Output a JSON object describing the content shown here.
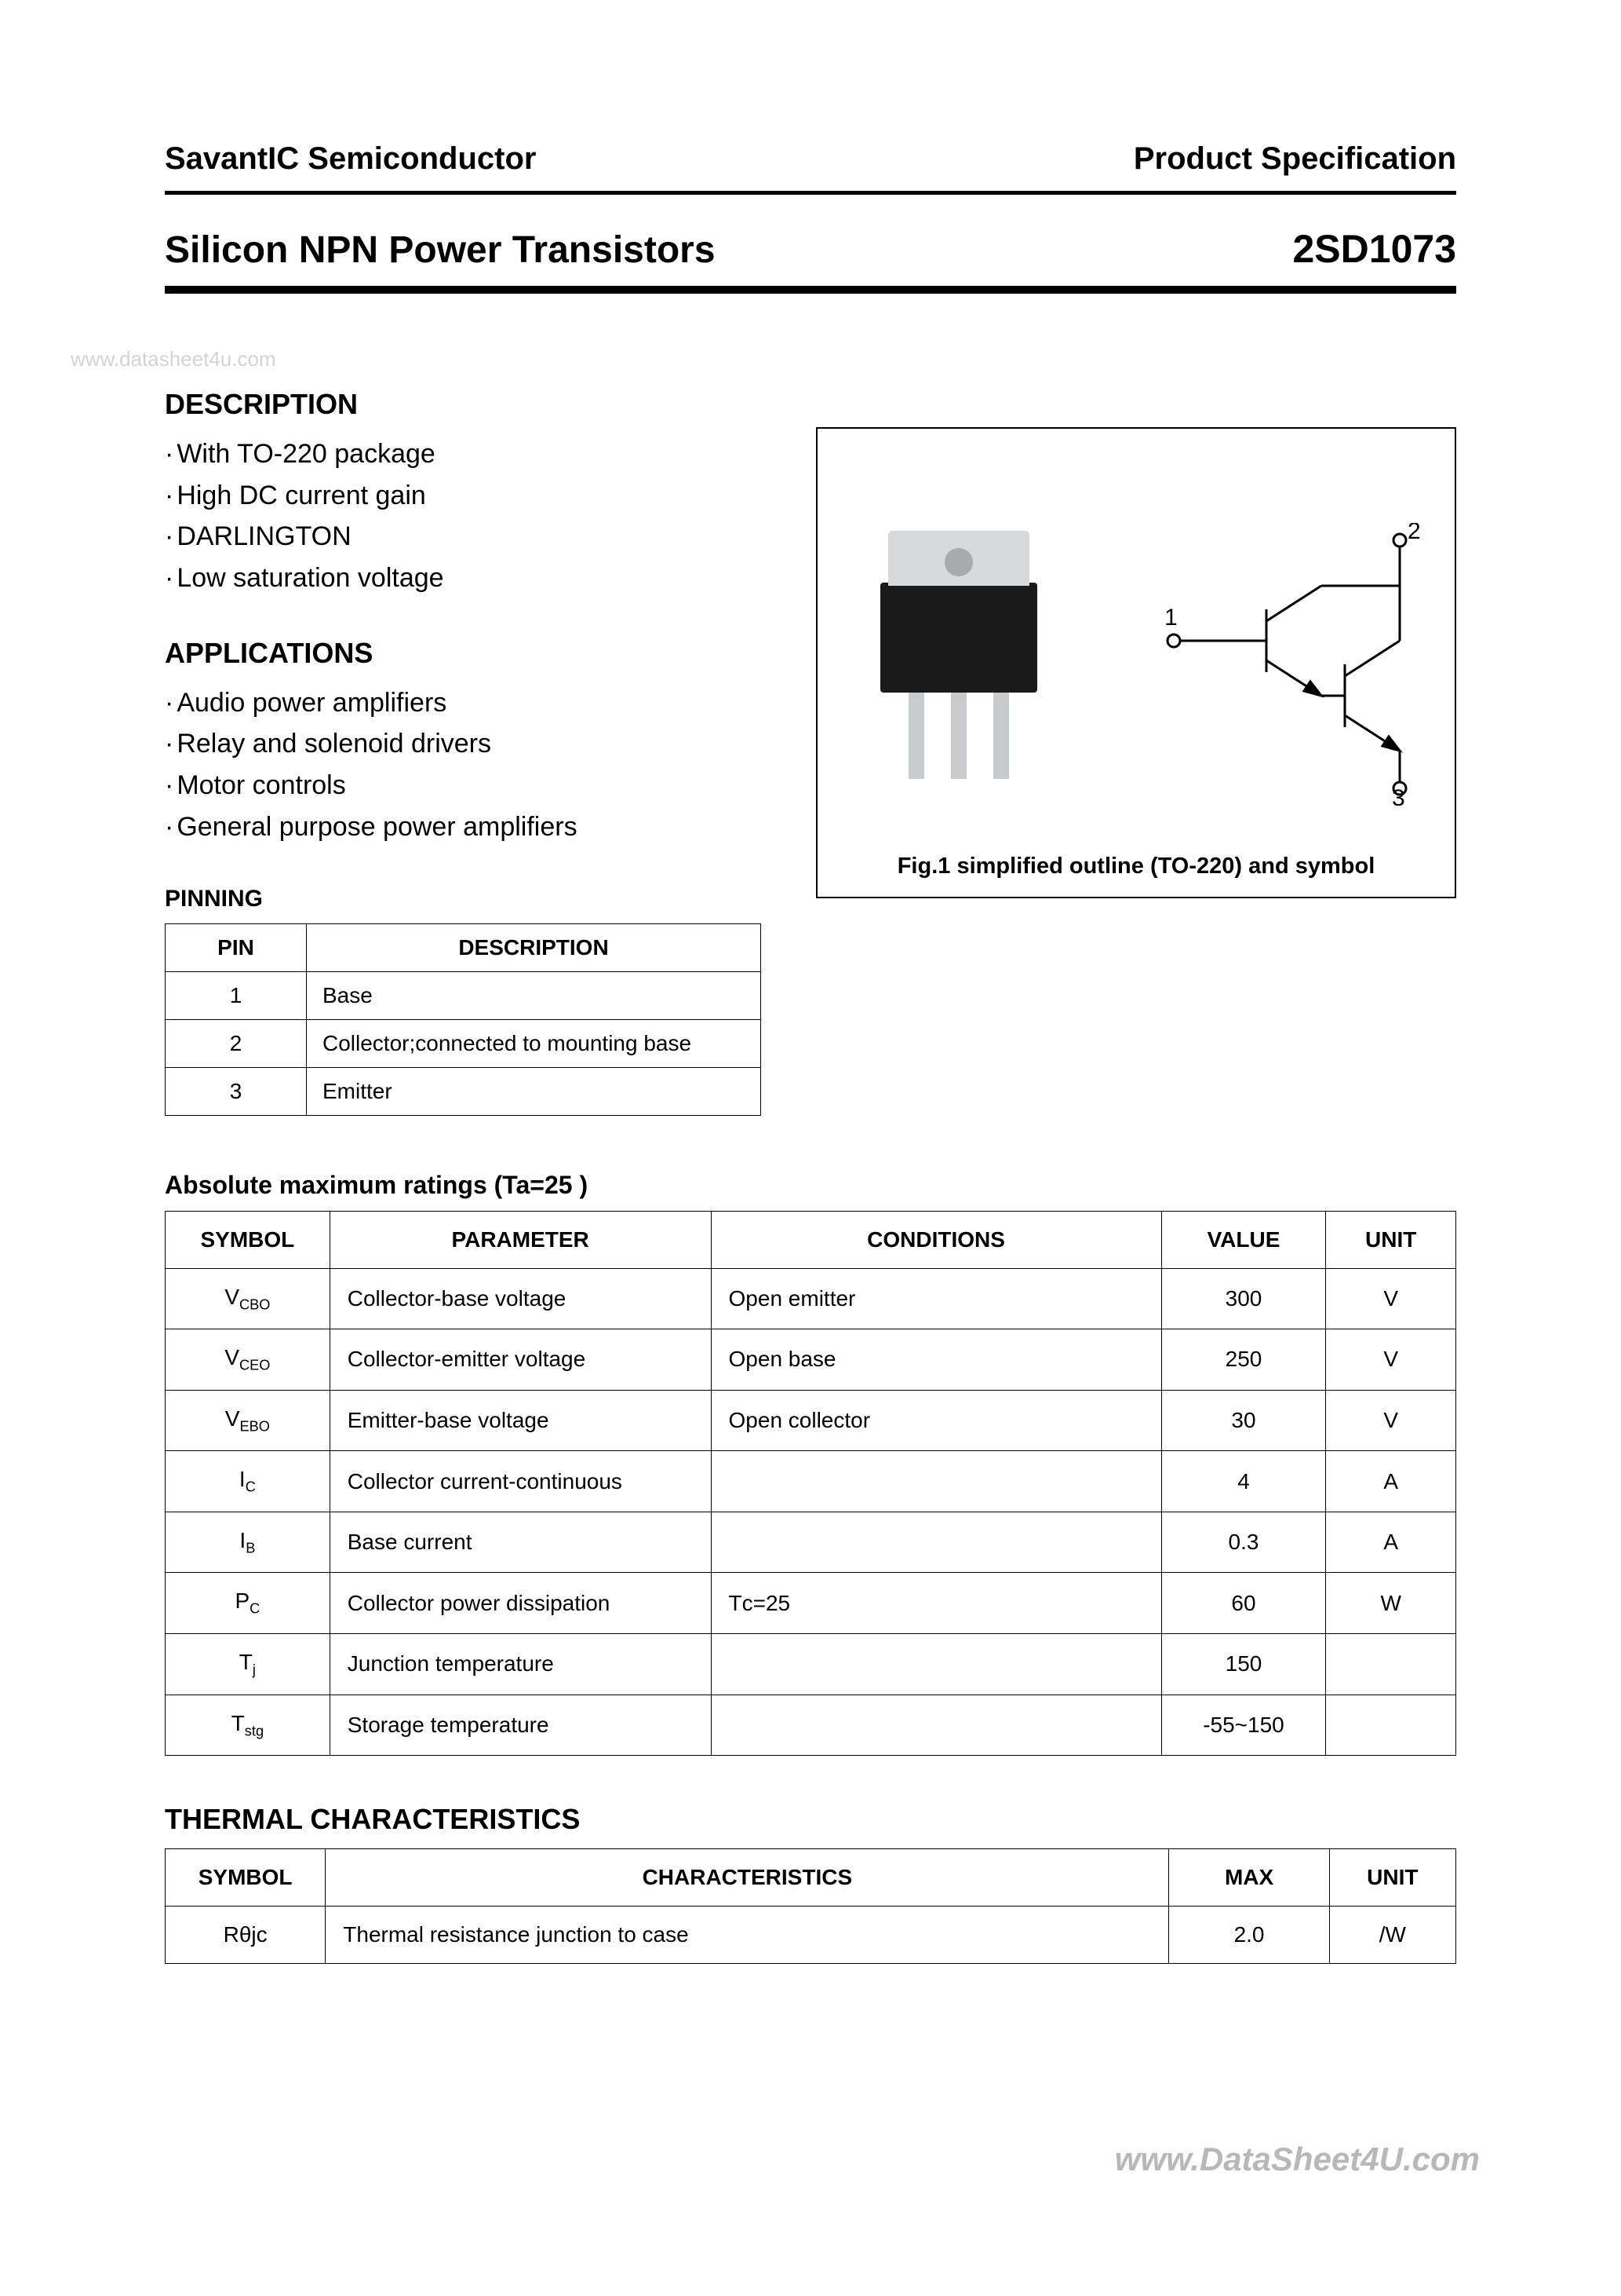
{
  "header": {
    "company": "SavantIC Semiconductor",
    "spec": "Product Specification",
    "product_title": "Silicon NPN Power Transistors",
    "part_no": "2SD1073"
  },
  "watermark": "www.datasheet4u.com",
  "description": {
    "heading": "DESCRIPTION",
    "items": [
      "With TO-220 package",
      "High DC current gain",
      "DARLINGTON",
      "Low saturation voltage"
    ]
  },
  "applications": {
    "heading": "APPLICATIONS",
    "items": [
      "Audio power amplifiers",
      "Relay and solenoid drivers",
      "Motor controls",
      "General purpose power amplifiers"
    ]
  },
  "pinning": {
    "heading": "PINNING",
    "cols": [
      "PIN",
      "DESCRIPTION"
    ],
    "rows": [
      {
        "pin": "1",
        "desc": "Base"
      },
      {
        "pin": "2",
        "desc": "Collector;connected to mounting base"
      },
      {
        "pin": "3",
        "desc": "Emitter"
      }
    ]
  },
  "figure": {
    "caption": "Fig.1  simplified  outline  (TO-220)  and  symbol",
    "pin_labels": {
      "base": "1",
      "collector": "2",
      "emitter": "3"
    },
    "symbol_stroke": "#000000",
    "symbol_stroke_width": 3
  },
  "abs_max": {
    "heading": "Absolute maximum ratings (Ta=25 )",
    "cols": [
      "SYMBOL",
      "PARAMETER",
      "CONDITIONS",
      "VALUE",
      "UNIT"
    ],
    "rows": [
      {
        "sym": "V",
        "sub": "CBO",
        "param": "Collector-base voltage",
        "cond": "Open emitter",
        "val": "300",
        "unit": "V"
      },
      {
        "sym": "V",
        "sub": "CEO",
        "param": "Collector-emitter voltage",
        "cond": "Open base",
        "val": "250",
        "unit": "V"
      },
      {
        "sym": "V",
        "sub": "EBO",
        "param": "Emitter-base voltage",
        "cond": "Open collector",
        "val": "30",
        "unit": "V"
      },
      {
        "sym": "I",
        "sub": "C",
        "param": "Collector current-continuous",
        "cond": "",
        "val": "4",
        "unit": "A"
      },
      {
        "sym": "I",
        "sub": "B",
        "param": "Base current",
        "cond": "",
        "val": "0.3",
        "unit": "A"
      },
      {
        "sym": "P",
        "sub": "C",
        "param": "Collector power dissipation",
        "cond": "Tᴄ=25",
        "val": "60",
        "unit": "W"
      },
      {
        "sym": "T",
        "sub": "j",
        "param": "Junction temperature",
        "cond": "",
        "val": "150",
        "unit": ""
      },
      {
        "sym": "T",
        "sub": "stg",
        "param": "Storage temperature",
        "cond": "",
        "val": "-55~150",
        "unit": ""
      }
    ]
  },
  "thermal": {
    "heading": "THERMAL CHARACTERISTICS",
    "cols": [
      "SYMBOL",
      "CHARACTERISTICS",
      "MAX",
      "UNIT"
    ],
    "rows": [
      {
        "sym": "Rθjc",
        "char": "Thermal resistance junction to case",
        "max": "2.0",
        "unit": "/W"
      }
    ]
  },
  "footer_link": "www.DataSheet4U.com"
}
